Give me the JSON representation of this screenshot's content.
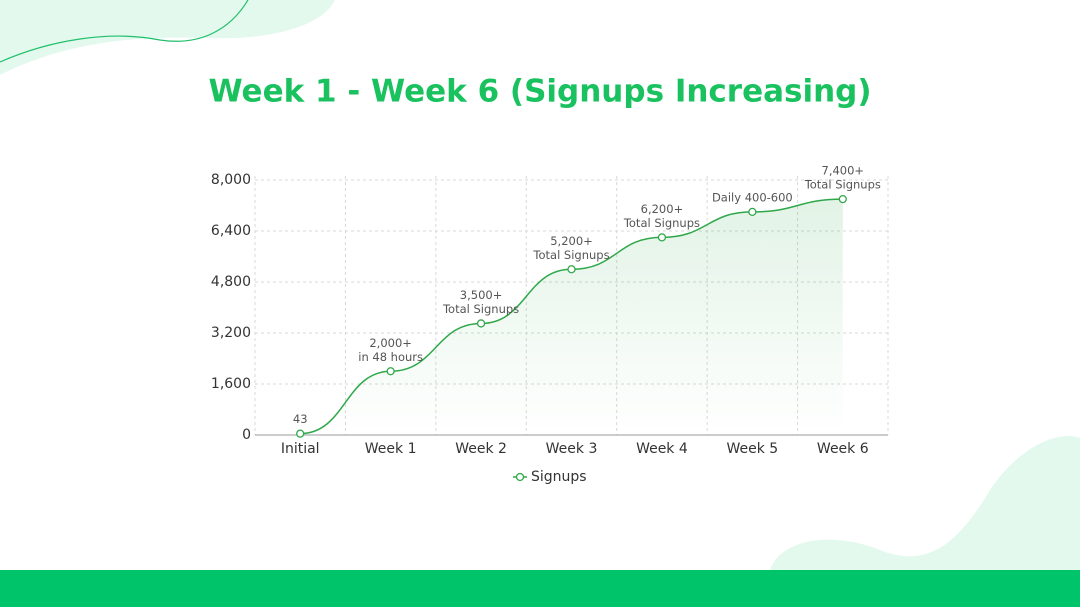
{
  "chart_data": {
    "type": "line",
    "title": "Week 1 - Week 6 (Signups Increasing)",
    "categories": [
      "Initial",
      "Week 1",
      "Week 2",
      "Week 3",
      "Week 4",
      "Week 5",
      "Week 6"
    ],
    "series": [
      {
        "name": "Signups",
        "color": "#2ea84a",
        "values": [
          43,
          2000,
          3500,
          5200,
          6200,
          7000,
          7400
        ],
        "value_labels": [
          [
            "43"
          ],
          [
            "2,000+",
            "in 48 hours"
          ],
          [
            "3,500+",
            "Total Signups"
          ],
          [
            "5,200+",
            "Total Signups"
          ],
          [
            "6,200+",
            "Total Signups"
          ],
          null,
          [
            "7,400+",
            "Total Signups"
          ]
        ]
      }
    ],
    "annotations": [
      {
        "x": "Week 5",
        "text": "Daily 400-600"
      }
    ],
    "ylim": [
      0,
      8000
    ],
    "yticks": [
      0,
      {
        "value": 1600,
        "label": "1,600"
      },
      {
        "value": 3200,
        "label": "3,200"
      },
      {
        "value": 4800,
        "label": "4,800"
      },
      {
        "value": 6400,
        "label": "6,400"
      },
      {
        "value": 8000,
        "label": "8,000"
      }
    ],
    "grid": true,
    "legend": "bottom"
  }
}
